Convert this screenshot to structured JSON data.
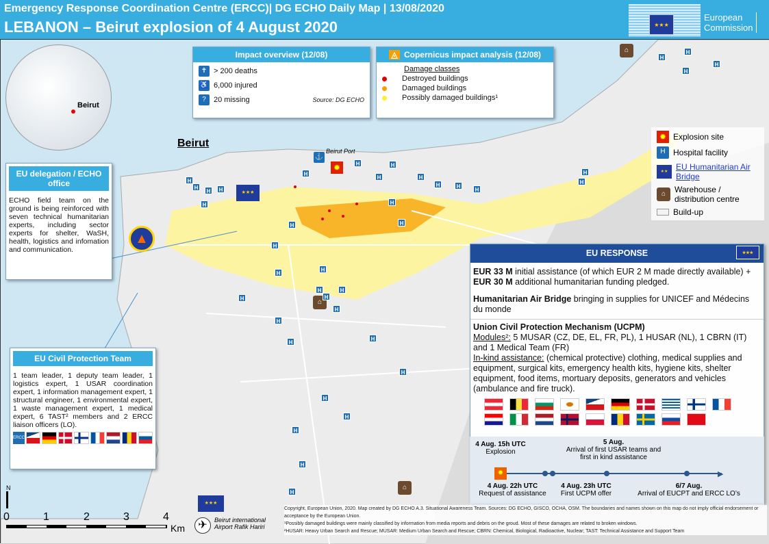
{
  "header": {
    "line1": "Emergency Response Coordination Centre (ERCC)| DG ECHO Daily Map | 13/08/2020",
    "title": "LEBANON – Beirut explosion of 4 August 2020",
    "logo_text": [
      "European",
      "Commission"
    ]
  },
  "colors": {
    "header": "#38ade0",
    "destroyed": "#e00000",
    "damaged": "#f5a000",
    "possibly_damaged": "#ffee33",
    "buildup": "#f3f3f3",
    "hospital": "#1f6db5",
    "warehouse": "#6b4a2e"
  },
  "inset": {
    "label": "Beirut"
  },
  "map_labels": {
    "city": "Beirut",
    "port": "Beirut Port",
    "airport": "Beirut international Airport Rafik Hariri"
  },
  "impact": {
    "title": "Impact overview (12/08)",
    "items": [
      {
        "icon": "deaths-icon",
        "text": "> 200 deaths"
      },
      {
        "icon": "injured-icon",
        "text": "6,000 injured"
      },
      {
        "icon": "missing-icon",
        "text": "20 missing"
      }
    ],
    "source": "Source: DG ECHO"
  },
  "copernicus": {
    "title": "Copernicus impact analysis (12/08)",
    "subtitle": "Damage classes",
    "classes": [
      {
        "label": "Destroyed buildings",
        "color": "#e00000"
      },
      {
        "label": "Damaged buildings",
        "color": "#f5a000"
      },
      {
        "label": "Possibly damaged buildings¹",
        "color": "#ffee33"
      }
    ]
  },
  "legend": [
    {
      "icon": "explosion-icon",
      "label": "Explosion site"
    },
    {
      "icon": "hospital-icon",
      "label": "Hospital facility"
    },
    {
      "icon": "eu-flag-icon",
      "label": "EU Humanitarian Air Bridge"
    },
    {
      "icon": "warehouse-icon",
      "label": "Warehouse / distribution centre"
    },
    {
      "icon": "buildup-icon",
      "label": "Build-up"
    }
  ],
  "delegation": {
    "title": "EU delegation / ECHO office",
    "text": "ECHO field team on the ground is being reinforced with seven technical humanitarian experts, including sector experts for shelter, WaSH, health, logistics and infomation and communication."
  },
  "cpteam": {
    "title": "EU Civil Protection Team",
    "text": "1 team leader, 1 deputy team leader, 1 logistics expert, 1 USAR coordination expert, 1 information management expert, 1 structural engineer, 1 environmental expert, 1 waste management expert, 1 medical expert, 6 TAST² members and 2 ERCC liaison officers (LO).",
    "logo": "ERCC",
    "flags": [
      "CZ",
      "DE",
      "DK",
      "FI",
      "FR",
      "NL",
      "RO",
      "SI"
    ]
  },
  "response": {
    "title": "EU RESPONSE",
    "p1": {
      "b1": "EUR 33 M",
      "t1": " initial assistance (of which EUR 2 M made directly available) + ",
      "b2": "EUR 30 M",
      "t2": " additional humanitarian funding pledged."
    },
    "p2": {
      "b": "Humanitarian Air Bridge",
      "t": " bringing in supplies for UNICEF and Médecins du monde"
    },
    "p3": {
      "title": "Union Civil Protection Mechanism (UCPM)",
      "modules_label": "Modules²:",
      "modules": " 5 MUSAR (CZ, DE, EL, FR, PL), 1 HUSAR (NL), 1 CBRN (IT) and 1 Medical Team (FR)",
      "inkind_label": "In-kind assistance:",
      "inkind": " (chemical protective) clothing, medical supplies and equipment, surgical kits, emergency health kits, hygiene kits, shelter equipment, food items, mortuary deposits, generators and vehicles (ambulance and fire truck)."
    },
    "flags_row1": [
      "AT",
      "BE",
      "BG",
      "CY",
      "CZ",
      "DE",
      "DK",
      "GR",
      "FI",
      "FR"
    ],
    "flags_row2": [
      "HR",
      "IT",
      "NL",
      "NO",
      "PL",
      "RO",
      "SE",
      "SK",
      "TR"
    ]
  },
  "timeline": [
    {
      "date": "4 Aug. 15h UTC",
      "label": "Explosion"
    },
    {
      "date": "4 Aug. 22h UTC",
      "label": "Request of assistance"
    },
    {
      "date": "4 Aug. 23h UTC",
      "label": "First UCPM offer"
    },
    {
      "date": "5 Aug.",
      "label": "Arrival of first USAR teams and first in kind assistance"
    },
    {
      "date": "6/7 Aug.",
      "label": "Arrival of EUCPT and ERCC LO’s"
    }
  ],
  "scale": {
    "ticks": [
      "0",
      "1",
      "2",
      "3",
      "4"
    ],
    "unit": "Km",
    "north": "N"
  },
  "footer": [
    "Copyright, European Union, 2020. Map created by DG ECHO A.3. Situational Awareness Team. Sources: DG ECHO, GISCO, OCHA, OSM. The boundaries and names shown on this map do not imply official endorsement or acceptance by the European Union.",
    "¹Possibly damaged buildings were mainly classified by information from media reports and debris on the groud. Most of these damages are related to broken windows.",
    "²HUSAR: Heavy Urban Search and Rescue; MUSAR: Medium Urban Search and Rescue; CBRN: Chemical, Biological, Radioactive, Nuclear; TAST: Technical Assistance and Support Team"
  ]
}
